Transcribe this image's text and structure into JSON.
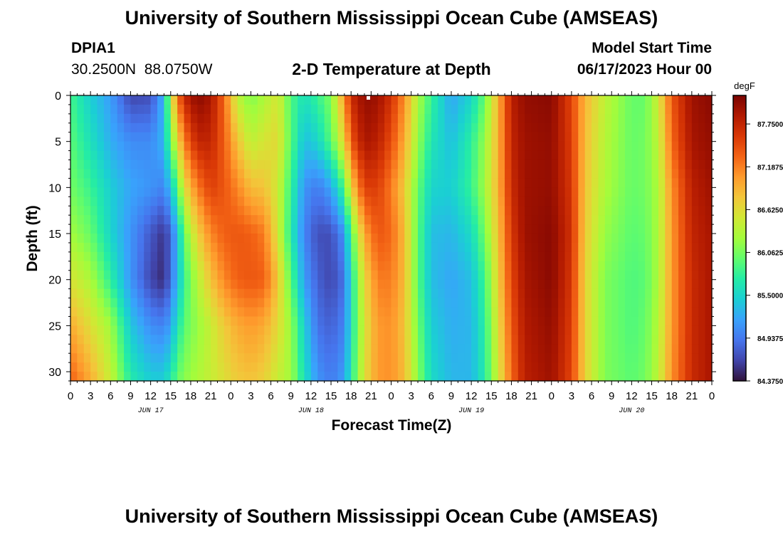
{
  "page": {
    "title": "University of Southern Mississippi Ocean Cube (AMSEAS)",
    "footer_title": "University of Southern Mississippi Ocean Cube (AMSEAS)",
    "station_id": "DPIA1",
    "station_coords": "30.2500N  88.0750W",
    "model_start_label": "Model Start Time",
    "model_start_value": "06/17/2023 Hour 00"
  },
  "chart_data": {
    "type": "heatmap",
    "title": "2-D Temperature at Depth",
    "xlabel": "Forecast Time(Z)",
    "ylabel": "Depth (ft)",
    "ylim": [
      0,
      31
    ],
    "y_ticks": [
      "0",
      "5",
      "10",
      "15",
      "20",
      "25",
      "30"
    ],
    "x_range_hours": [
      0,
      96
    ],
    "x_ticks": [
      "0",
      "3",
      "6",
      "9",
      "12",
      "15",
      "18",
      "21",
      "0",
      "3",
      "6",
      "9",
      "12",
      "15",
      "18",
      "21",
      "0",
      "3",
      "6",
      "9",
      "12",
      "15",
      "18",
      "21",
      "0",
      "3",
      "6",
      "9",
      "12",
      "15",
      "18",
      "21",
      "0"
    ],
    "day_labels": [
      "JUN 17",
      "JUN 18",
      "JUN 19",
      "JUN 20"
    ],
    "colorbar": {
      "unit": "degF",
      "min": 84.375,
      "max": 88.125,
      "labels": [
        "87.7500",
        "87.1875",
        "86.6250",
        "86.0625",
        "85.5000",
        "84.9375",
        "84.3750"
      ]
    },
    "colormap": [
      "#30123b",
      "#4145ab",
      "#4675ed",
      "#39a2fc",
      "#1bcfd4",
      "#24eca6",
      "#61fc6c",
      "#a4fc3b",
      "#d1e834",
      "#f3c63a",
      "#fe9b2d",
      "#f36315",
      "#d93806",
      "#b11901",
      "#7a0402"
    ],
    "profiles": [
      {
        "t": 0,
        "v": [
          85.85,
          85.95,
          86.05,
          86.25,
          86.55,
          86.95,
          87.35
        ]
      },
      {
        "t": 3,
        "v": [
          85.45,
          85.6,
          85.8,
          86.0,
          86.3,
          86.6,
          86.95
        ]
      },
      {
        "t": 6,
        "v": [
          85.15,
          85.25,
          85.45,
          85.5,
          85.75,
          86.25,
          86.45
        ]
      },
      {
        "t": 9,
        "v": [
          84.65,
          85.05,
          85.2,
          85.1,
          85.1,
          85.4,
          85.7
        ]
      },
      {
        "t": 12,
        "v": [
          84.7,
          85.05,
          85.1,
          84.75,
          84.65,
          85.05,
          85.45
        ]
      },
      {
        "t": 14,
        "v": [
          85.3,
          85.3,
          85.0,
          84.55,
          84.5,
          85.0,
          85.45
        ]
      },
      {
        "t": 15,
        "v": [
          86.4,
          86.05,
          85.4,
          84.85,
          84.9,
          85.2,
          85.7
        ]
      },
      {
        "t": 16,
        "v": [
          87.2,
          86.6,
          85.9,
          85.3,
          85.3,
          85.6,
          86.0
        ]
      },
      {
        "t": 17,
        "v": [
          87.75,
          87.2,
          86.6,
          86.0,
          85.8,
          85.95,
          86.15
        ]
      },
      {
        "t": 19,
        "v": [
          88.05,
          87.75,
          87.2,
          86.7,
          86.35,
          86.2,
          86.3
        ]
      },
      {
        "t": 21,
        "v": [
          87.9,
          87.75,
          87.55,
          87.15,
          86.8,
          86.45,
          86.45
        ]
      },
      {
        "t": 23,
        "v": [
          87.3,
          87.35,
          87.4,
          87.35,
          87.15,
          86.75,
          86.6
        ]
      },
      {
        "t": 25,
        "v": [
          86.4,
          86.8,
          87.15,
          87.4,
          87.35,
          86.95,
          86.75
        ]
      },
      {
        "t": 27,
        "v": [
          86.1,
          86.4,
          86.85,
          87.35,
          87.4,
          87.05,
          86.8
        ]
      },
      {
        "t": 29,
        "v": [
          86.3,
          86.55,
          86.8,
          87.2,
          87.35,
          86.95,
          86.7
        ]
      },
      {
        "t": 31,
        "v": [
          86.55,
          86.65,
          86.5,
          86.55,
          86.8,
          86.65,
          86.45
        ]
      },
      {
        "t": 33,
        "v": [
          85.9,
          85.95,
          85.8,
          85.7,
          85.95,
          86.2,
          86.25
        ]
      },
      {
        "t": 35,
        "v": [
          85.6,
          85.35,
          85.1,
          85.0,
          85.15,
          85.45,
          85.6
        ]
      },
      {
        "t": 37,
        "v": [
          85.8,
          85.5,
          84.95,
          84.7,
          84.8,
          84.9,
          85.1
        ]
      },
      {
        "t": 39,
        "v": [
          86.1,
          85.95,
          85.2,
          84.7,
          84.65,
          84.8,
          84.95
        ]
      },
      {
        "t": 41,
        "v": [
          87.1,
          86.7,
          85.9,
          85.1,
          84.9,
          85.0,
          85.15
        ]
      },
      {
        "t": 42,
        "v": [
          87.7,
          87.4,
          86.7,
          85.9,
          85.6,
          85.6,
          85.7
        ]
      },
      {
        "t": 44,
        "v": [
          88.0,
          87.9,
          87.55,
          87.0,
          86.65,
          86.55,
          86.6
        ]
      },
      {
        "t": 46,
        "v": [
          87.95,
          87.8,
          87.55,
          87.4,
          87.2,
          87.05,
          87.05
        ]
      },
      {
        "t": 48,
        "v": [
          87.65,
          87.45,
          87.2,
          87.3,
          87.2,
          87.1,
          87.1
        ]
      },
      {
        "t": 50,
        "v": [
          87.1,
          86.95,
          86.75,
          86.85,
          86.85,
          86.8,
          86.85
        ]
      },
      {
        "t": 52,
        "v": [
          86.3,
          86.2,
          86.0,
          85.95,
          85.95,
          86.05,
          86.15
        ]
      },
      {
        "t": 54,
        "v": [
          85.8,
          85.65,
          85.5,
          85.35,
          85.35,
          85.45,
          85.55
        ]
      },
      {
        "t": 57,
        "v": [
          85.2,
          85.35,
          85.45,
          85.3,
          85.2,
          85.25,
          85.3
        ]
      },
      {
        "t": 60,
        "v": [
          85.5,
          85.75,
          85.8,
          85.55,
          85.35,
          85.3,
          85.3
        ]
      },
      {
        "t": 62,
        "v": [
          86.0,
          86.2,
          86.25,
          86.05,
          85.85,
          85.75,
          85.7
        ]
      },
      {
        "t": 64,
        "v": [
          86.9,
          86.9,
          86.9,
          86.8,
          86.7,
          86.6,
          86.5
        ]
      },
      {
        "t": 66,
        "v": [
          87.8,
          87.75,
          87.7,
          87.6,
          87.5,
          87.4,
          87.3
        ]
      },
      {
        "t": 68,
        "v": [
          88.0,
          87.95,
          87.95,
          87.95,
          87.9,
          87.85,
          87.8
        ]
      },
      {
        "t": 72,
        "v": [
          88.05,
          88.0,
          88.0,
          88.05,
          88.05,
          88.0,
          87.95
        ]
      },
      {
        "t": 75,
        "v": [
          87.5,
          87.55,
          87.6,
          87.65,
          87.6,
          87.55,
          87.5
        ]
      },
      {
        "t": 77,
        "v": [
          86.9,
          86.85,
          86.8,
          86.75,
          86.7,
          86.7,
          86.7
        ]
      },
      {
        "t": 80,
        "v": [
          86.4,
          86.35,
          86.3,
          86.2,
          86.1,
          86.1,
          86.1
        ]
      },
      {
        "t": 84,
        "v": [
          86.0,
          86.0,
          86.0,
          85.95,
          85.9,
          85.9,
          85.95
        ]
      },
      {
        "t": 86,
        "v": [
          86.0,
          86.05,
          86.05,
          86.0,
          85.95,
          86.0,
          86.05
        ]
      },
      {
        "t": 88,
        "v": [
          86.5,
          86.4,
          86.3,
          86.3,
          86.3,
          86.35,
          86.4
        ]
      },
      {
        "t": 90,
        "v": [
          87.4,
          87.3,
          87.1,
          87.05,
          87.05,
          87.05,
          87.1
        ]
      },
      {
        "t": 93,
        "v": [
          87.95,
          87.9,
          87.8,
          87.75,
          87.7,
          87.7,
          87.7
        ]
      },
      {
        "t": 96,
        "v": [
          88.05,
          88.0,
          87.95,
          87.9,
          87.9,
          87.9,
          87.9
        ]
      }
    ]
  }
}
